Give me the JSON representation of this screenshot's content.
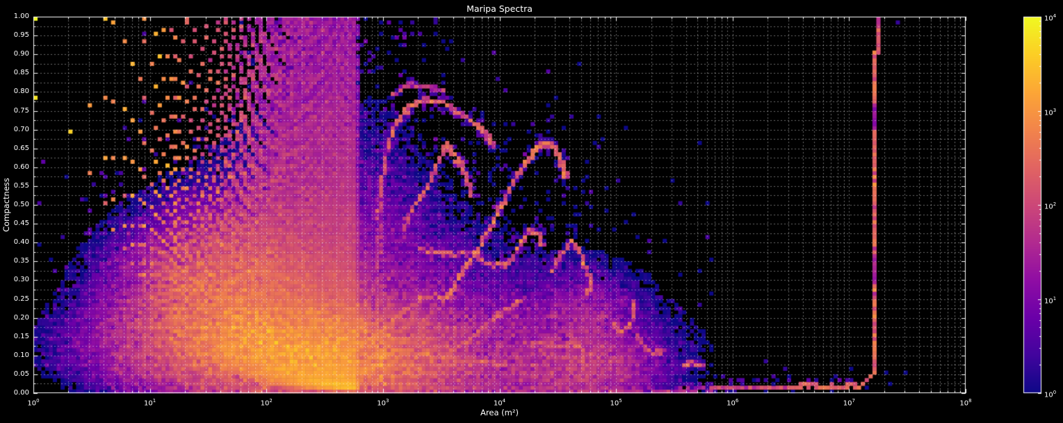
{
  "chart_data": {
    "type": "heatmap",
    "title": "Maripa Spectra",
    "xlabel": "Area (m²)",
    "ylabel": "Compactness",
    "x_scale": "log",
    "x_range_exp": [
      0,
      8
    ],
    "y_range": [
      0,
      1
    ],
    "log_base": "10",
    "x_ticks_exp": [
      0,
      1,
      2,
      3,
      4,
      5,
      6,
      7,
      8
    ],
    "y_ticks": [
      "0.00",
      "0.05",
      "0.10",
      "0.15",
      "0.20",
      "0.25",
      "0.30",
      "0.35",
      "0.40",
      "0.45",
      "0.50",
      "0.55",
      "0.60",
      "0.65",
      "0.70",
      "0.75",
      "0.80",
      "0.85",
      "0.90",
      "0.95",
      "1.00"
    ],
    "grid": {
      "dashed": true,
      "y_minor_step": 0.025,
      "x_log_minors": true
    },
    "colorbar": {
      "scale": "log",
      "range_exp": [
        0,
        4
      ],
      "ticks_exp": [
        4,
        3,
        2,
        1,
        0
      ],
      "colormap": "plasma",
      "stops": [
        [
          0,
          "#0d0887"
        ],
        [
          0.1,
          "#41049d"
        ],
        [
          0.2,
          "#6a00a8"
        ],
        [
          0.3,
          "#8f0da4"
        ],
        [
          0.4,
          "#b12a90"
        ],
        [
          0.5,
          "#cc4778"
        ],
        [
          0.6,
          "#e16462"
        ],
        [
          0.7,
          "#f2844b"
        ],
        [
          0.8,
          "#fca636"
        ],
        [
          0.9,
          "#fcce25"
        ],
        [
          1,
          "#f0f921"
        ]
      ]
    },
    "colors": {
      "background": "#000000",
      "foreground": "#ffffff",
      "grid": "rgba(255,255,255,0.42)"
    },
    "model": {
      "seed": 1337,
      "bins": {
        "nx": 240,
        "ny": 100
      },
      "fan": {
        "a_max": 600,
        "amp": 28000,
        "slope": -1.5,
        "c_exp": 0.25,
        "jitter": 0.3,
        "step_switch": 20,
        "circle_areas": [
          1,
          4,
          9,
          20,
          45,
          90,
          180,
          360
        ]
      },
      "clouds": [
        [
          2.15,
          0.13,
          0.6,
          0.06,
          520
        ],
        [
          1.7,
          0.24,
          0.4,
          0.1,
          250
        ],
        [
          2.55,
          0.09,
          0.45,
          0.05,
          350
        ],
        [
          2.95,
          0.06,
          0.35,
          0.04,
          120
        ],
        [
          2.4,
          0.18,
          0.7,
          0.12,
          40
        ],
        [
          2.3,
          0.32,
          0.6,
          0.15,
          8
        ],
        [
          2.55,
          0.48,
          0.5,
          0.2,
          2.5
        ],
        [
          3.4,
          0.05,
          0.5,
          0.035,
          25
        ],
        [
          3.8,
          0.12,
          0.75,
          0.075,
          18
        ],
        [
          4.3,
          0.07,
          0.5,
          0.05,
          12
        ],
        [
          4.6,
          0.17,
          0.35,
          0.09,
          10
        ],
        [
          4.75,
          0.16,
          0.18,
          0.06,
          25
        ],
        [
          4.85,
          0.08,
          0.25,
          0.035,
          30
        ],
        [
          4.62,
          0.05,
          0.3,
          0.03,
          35
        ]
      ],
      "speckles": [
        [
          3000,
          2.2,
          0.85,
          0.13,
          0.26,
          8
        ],
        [
          900,
          3.7,
          0.75,
          0.33,
          0.22,
          3
        ],
        [
          300,
          3.0,
          0.12,
          0.42,
          0.14,
          6
        ],
        [
          260,
          4.9,
          0.9,
          0.02,
          0.025,
          3
        ],
        [
          70,
          2.7,
          0.5,
          0.9,
          0.06,
          2
        ],
        [
          14,
          3.1,
          0.2,
          0.965,
          0.025,
          12
        ]
      ],
      "streaks": [
        {
          "n": 70,
          "p": [
            [
              2.96,
              0.47
            ],
            [
              2.99,
              0.57
            ],
            [
              3.04,
              0.66
            ],
            [
              3.12,
              0.72
            ],
            [
              3.22,
              0.76
            ],
            [
              3.35,
              0.78
            ],
            [
              3.5,
              0.775
            ],
            [
              3.63,
              0.75
            ],
            [
              3.76,
              0.72
            ],
            [
              3.88,
              0.69
            ],
            [
              3.95,
              0.655
            ]
          ]
        },
        {
          "n": 25,
          "p": [
            [
              3.08,
              0.795
            ],
            [
              3.22,
              0.82
            ],
            [
              3.38,
              0.815
            ],
            [
              3.52,
              0.8
            ]
          ]
        },
        {
          "n": 90,
          "p": [
            [
              3.53,
              0.24
            ],
            [
              3.62,
              0.29
            ],
            [
              3.72,
              0.34
            ],
            [
              3.82,
              0.385
            ],
            [
              3.92,
              0.44
            ],
            [
              4.02,
              0.5
            ],
            [
              4.12,
              0.56
            ],
            [
              4.22,
              0.615
            ],
            [
              4.31,
              0.65
            ],
            [
              4.4,
              0.668
            ],
            [
              4.48,
              0.648
            ],
            [
              4.54,
              0.61
            ],
            [
              4.56,
              0.575
            ]
          ]
        },
        {
          "n": 60,
          "p": [
            [
              3.17,
              0.44
            ],
            [
              3.27,
              0.5
            ],
            [
              3.37,
              0.545
            ],
            [
              3.46,
              0.6
            ],
            [
              3.54,
              0.662
            ],
            [
              3.6,
              0.64
            ],
            [
              3.66,
              0.61
            ],
            [
              3.73,
              0.565
            ],
            [
              3.76,
              0.525
            ]
          ]
        },
        {
          "n": 55,
          "p": [
            [
              3.3,
              0.385
            ],
            [
              3.45,
              0.375
            ],
            [
              3.6,
              0.368
            ],
            [
              3.75,
              0.372
            ],
            [
              3.88,
              0.35
            ],
            [
              4.0,
              0.338
            ],
            [
              4.1,
              0.35
            ],
            [
              4.18,
              0.4
            ],
            [
              4.26,
              0.43
            ],
            [
              4.34,
              0.425
            ],
            [
              4.37,
              0.39
            ]
          ]
        },
        {
          "n": 70,
          "p": [
            [
              4.45,
              0.325
            ],
            [
              4.54,
              0.372
            ],
            [
              4.62,
              0.405
            ],
            [
              4.7,
              0.37
            ],
            [
              4.74,
              0.335
            ],
            [
              4.78,
              0.3
            ],
            [
              4.76,
              0.26
            ]
          ]
        },
        {
          "n": 40,
          "p": [
            [
              3.02,
              0.175
            ],
            [
              3.15,
              0.21
            ],
            [
              3.3,
              0.25
            ],
            [
              3.45,
              0.26
            ],
            [
              3.58,
              0.255
            ]
          ]
        },
        {
          "n": 35,
          "p": [
            [
              3.1,
              0.115
            ],
            [
              3.3,
              0.105
            ],
            [
              3.5,
              0.098
            ],
            [
              3.7,
              0.09
            ],
            [
              3.9,
              0.082
            ],
            [
              4.05,
              0.078
            ]
          ]
        },
        {
          "n": 60,
          "p": [
            [
              3.55,
              0.105
            ],
            [
              3.73,
              0.14
            ],
            [
              3.9,
              0.185
            ],
            [
              4.05,
              0.22
            ],
            [
              4.17,
              0.245
            ]
          ]
        },
        {
          "n": 60,
          "p": [
            [
              4.2,
              0.13
            ],
            [
              4.35,
              0.135
            ],
            [
              4.5,
              0.125
            ],
            [
              4.62,
              0.13
            ],
            [
              4.72,
              0.12
            ]
          ]
        },
        {
          "n": 45,
          "p": [
            [
              2.95,
              0.075
            ],
            [
              3.1,
              0.08
            ],
            [
              3.25,
              0.075
            ]
          ]
        },
        {
          "n": 50,
          "p": [
            [
              4.98,
              0.19
            ],
            [
              5.01,
              0.17
            ],
            [
              5.06,
              0.163
            ],
            [
              5.12,
              0.18
            ],
            [
              5.15,
              0.21
            ],
            [
              5.16,
              0.245
            ]
          ]
        },
        {
          "n": 45,
          "p": [
            [
              5.17,
              0.155
            ],
            [
              5.25,
              0.12
            ],
            [
              5.33,
              0.105
            ],
            [
              5.4,
              0.112
            ]
          ]
        },
        {
          "n": 80,
          "p": [
            [
              5.58,
              0.075
            ],
            [
              5.66,
              0.08
            ],
            [
              5.74,
              0.078
            ]
          ]
        },
        {
          "n": 12,
          "p": [
            [
              2.96,
              0.33
            ],
            [
              2.965,
              0.4
            ],
            [
              2.97,
              0.46
            ]
          ]
        }
      ],
      "bands": [
        [
          3.0,
          4.6,
          0.012,
          0.7,
          1.0
        ],
        [
          4.6,
          5.8,
          0.008,
          0.9,
          0.9
        ],
        [
          5.8,
          6.55,
          0.016,
          1.3,
          1.0
        ],
        [
          6.55,
          7.08,
          0.018,
          2.0,
          0.5
        ]
      ],
      "vline": {
        "la": 7.206,
        "la_top": 7.235,
        "c0": 0.052,
        "split": 0.905,
        "base_exp": 2.3,
        "base_sd": 0.28,
        "segments": [
          [
            0.7,
            0.77,
            1.35,
            0.15
          ],
          [
            0.285,
            0.365,
            1.5,
            0.15
          ],
          [
            0.09,
            0.125,
            2.72,
            0.1
          ]
        ],
        "top_cap_exp": 1.9,
        "curve": [
          [
            7.08,
            0.018
          ],
          [
            7.12,
            0.026
          ],
          [
            7.16,
            0.034
          ],
          [
            7.19,
            0.044
          ],
          [
            7.2,
            0.052
          ]
        ]
      },
      "points": [
        [
          7.405,
          0.985,
          2
        ]
      ]
    }
  }
}
